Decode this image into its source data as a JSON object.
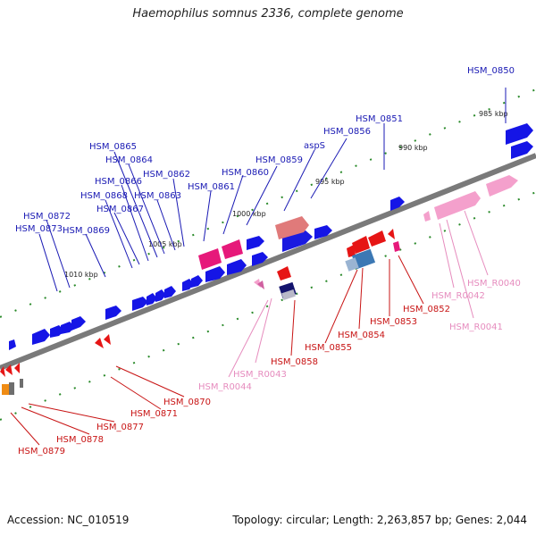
{
  "title": "Haemophilus somnus 2336, complete genome",
  "accession": "Accession: NC_010519",
  "summary": "Topology: circular; Length: 2,263,857 bp; Genes: 2,044",
  "colors": {
    "backbone": "#808080",
    "forward_gene": "#1515e6",
    "reverse_gene": "#e61515",
    "rna": "#f08cc8",
    "forward_label": "#1a1ab4",
    "reverse_label": "#c81414",
    "rna_label": "#e68cbe",
    "tick": "#2a8a2a"
  },
  "ticks": [
    "985 kbp",
    "990 kbp",
    "995 kbp",
    "1000 kbp",
    "1005 kbp",
    "1010 kbp"
  ],
  "forward_labels": [
    "HSM_0850",
    "HSM_0851",
    "HSM_0856",
    "aspS",
    "HSM_0859",
    "HSM_0860",
    "HSM_0861",
    "HSM_0862",
    "HSM_0863",
    "HSM_0864",
    "HSM_0865",
    "HSM_0866",
    "HSM_0867",
    "HSM_0868",
    "HSM_0869",
    "HSM_0872",
    "HSM_0873"
  ],
  "reverse_labels": [
    "HSM_0852",
    "HSM_0853",
    "HSM_0854",
    "HSM_0855",
    "HSM_0858",
    "HSM_0870",
    "HSM_0871",
    "HSM_0877",
    "HSM_0878",
    "HSM_0879"
  ],
  "rna_labels": [
    "HSM_R0040",
    "HSM_R0041",
    "HSM_R0042",
    "HSM_R0043",
    "HSM_R0044"
  ]
}
